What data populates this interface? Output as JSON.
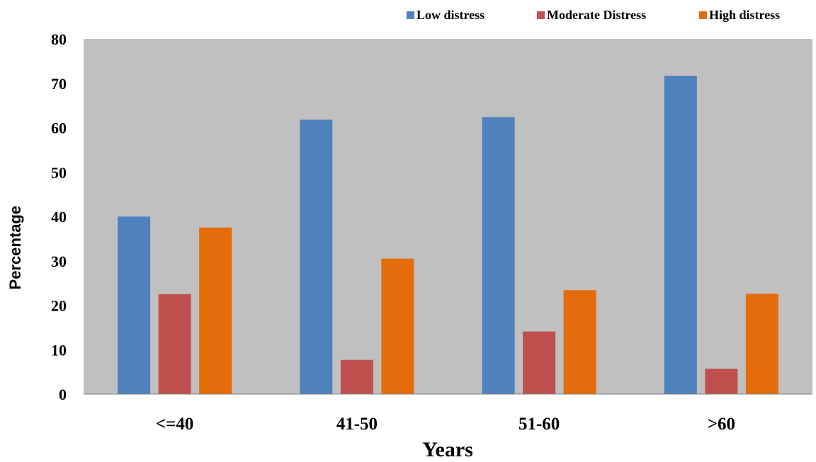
{
  "chart_data": {
    "type": "bar",
    "title": "",
    "xlabel": "Years",
    "ylabel": "Percentage",
    "categories": [
      "<=40",
      "41-50",
      "51-60",
      ">60"
    ],
    "series": [
      {
        "name": "Low distress",
        "color": "#4F81BD",
        "values": [
          40,
          61.8,
          62.4,
          71.7
        ]
      },
      {
        "name": "Moderate Distress",
        "color": "#C0504D",
        "values": [
          22.5,
          7.7,
          14.1,
          5.7
        ]
      },
      {
        "name": "High distress",
        "color": "#E46C0A",
        "values": [
          37.5,
          30.5,
          23.4,
          22.6
        ]
      }
    ],
    "ylim": [
      0,
      80
    ],
    "yticks": [
      0,
      10,
      20,
      30,
      40,
      50,
      60,
      70,
      80
    ],
    "grid": false,
    "legend": "top-right",
    "plot_background": "#C0C0C0"
  }
}
